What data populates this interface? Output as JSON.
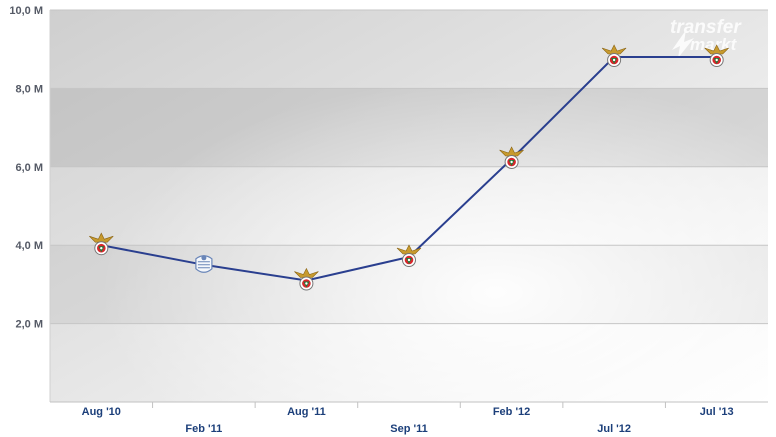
{
  "chart_data": {
    "type": "line",
    "categories": [
      "Aug '10",
      "Feb '11",
      "Aug '11",
      "Sep '11",
      "Feb '12",
      "Jul '12",
      "Jul '13"
    ],
    "series": [
      {
        "values": [
          4.0,
          3.5,
          3.1,
          3.7,
          6.2,
          8.8,
          8.8
        ],
        "color": "#2a3f8f"
      }
    ],
    "point_icons": [
      "eagle-crest-icon",
      "bolton-crest-icon",
      "eagle-crest-icon",
      "eagle-crest-icon",
      "eagle-crest-icon",
      "eagle-crest-icon",
      "eagle-crest-icon"
    ],
    "yticks": [
      {
        "value": 2,
        "label": "2,0 M"
      },
      {
        "value": 4,
        "label": "4,0 M"
      },
      {
        "value": 6,
        "label": "6,0 M"
      },
      {
        "value": 8,
        "label": "8,0 M"
      },
      {
        "value": 10,
        "label": "10,0 M"
      }
    ],
    "ylim": [
      0,
      10
    ],
    "grid": true,
    "title": "",
    "xlabel": "",
    "ylabel": ""
  },
  "watermark": {
    "line1": "transfer",
    "line2": "markt"
  },
  "colors": {
    "line": "#2a3f8f",
    "grid": "#c6c6c6",
    "band_dark": "#c4c4c4",
    "band_light": "#e6e6e6",
    "xtick": "#1c3f7a",
    "ytick": "#555a66"
  }
}
